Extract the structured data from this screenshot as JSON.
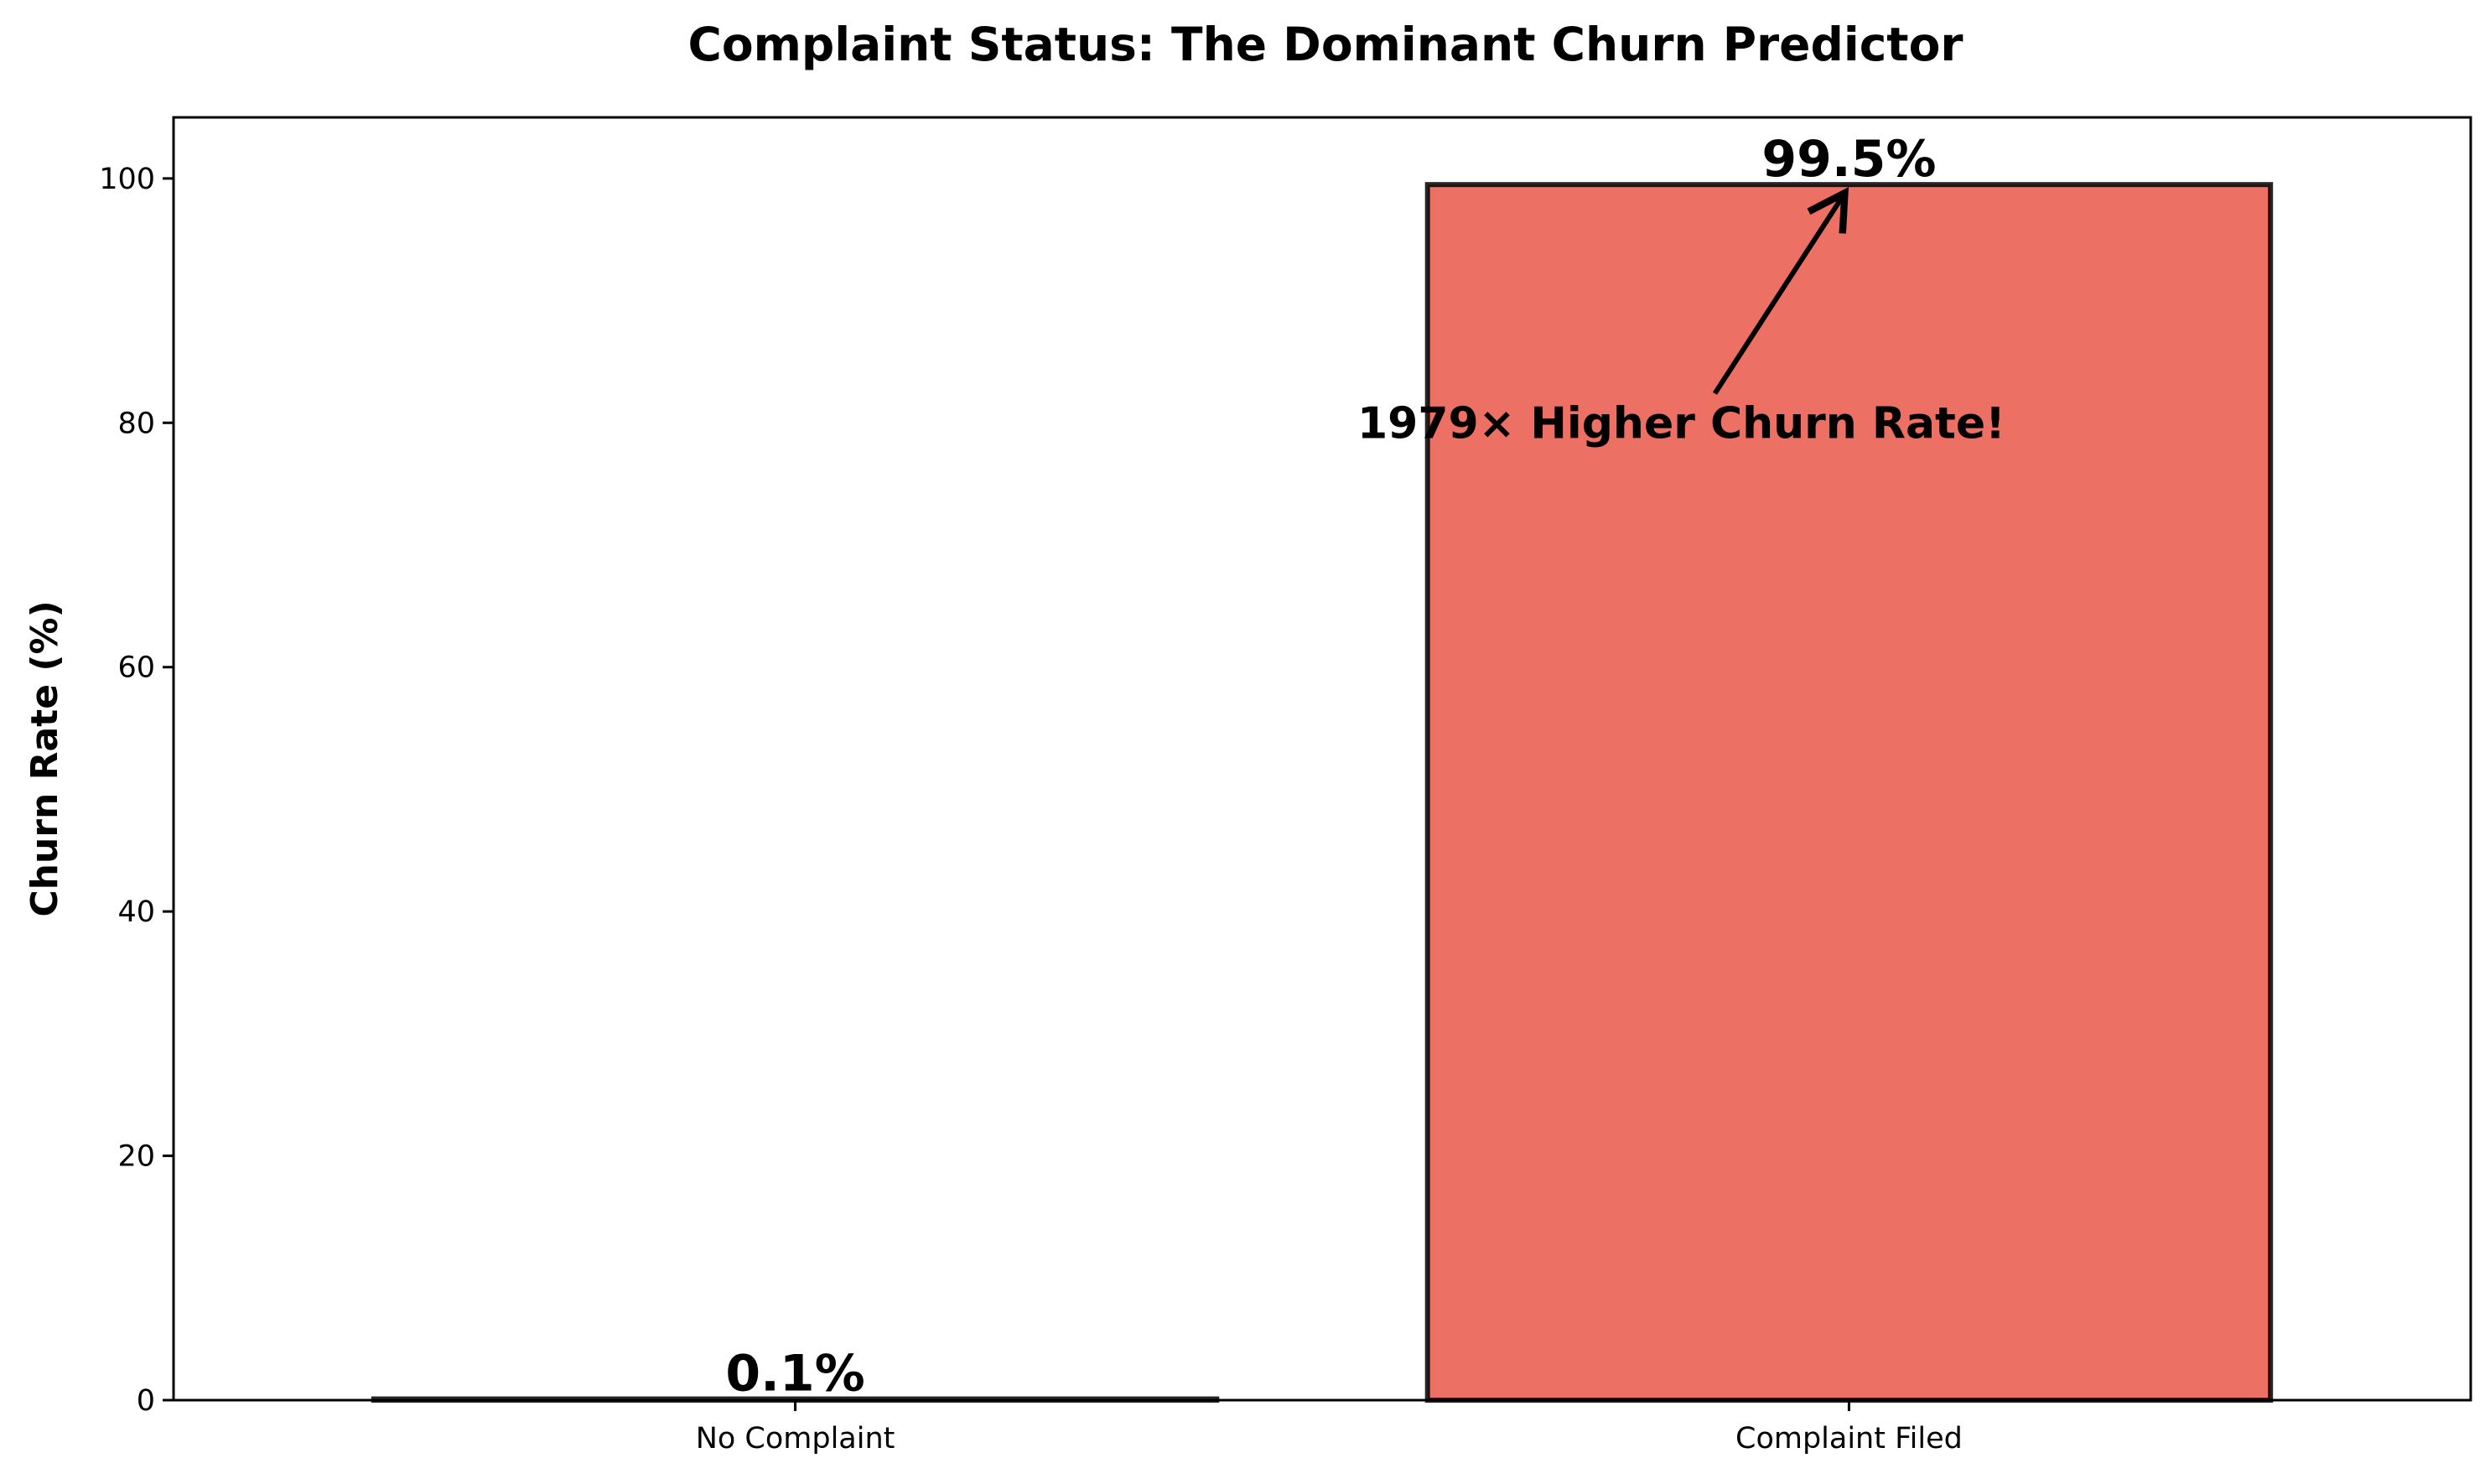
{
  "chart_data": {
    "type": "bar",
    "title": "Complaint Status: The Dominant Churn Predictor",
    "xlabel": "",
    "ylabel": "Churn Rate (%)",
    "categories": [
      "No Complaint",
      "Complaint Filed"
    ],
    "values": [
      0.1,
      99.5
    ],
    "value_labels": [
      "0.1%",
      "99.5%"
    ],
    "ylim": [
      0,
      105
    ],
    "yticks": [
      0,
      20,
      40,
      60,
      80,
      100
    ],
    "grid": false,
    "bar_colors": [
      "#3498db",
      "#e74c3c"
    ],
    "annotation": {
      "text": "1979× Higher Churn Rate!",
      "text_at": {
        "category": "Complaint Filed",
        "value": 80
      },
      "arrow_to": {
        "category": "Complaint Filed",
        "value": 99.5
      }
    }
  }
}
